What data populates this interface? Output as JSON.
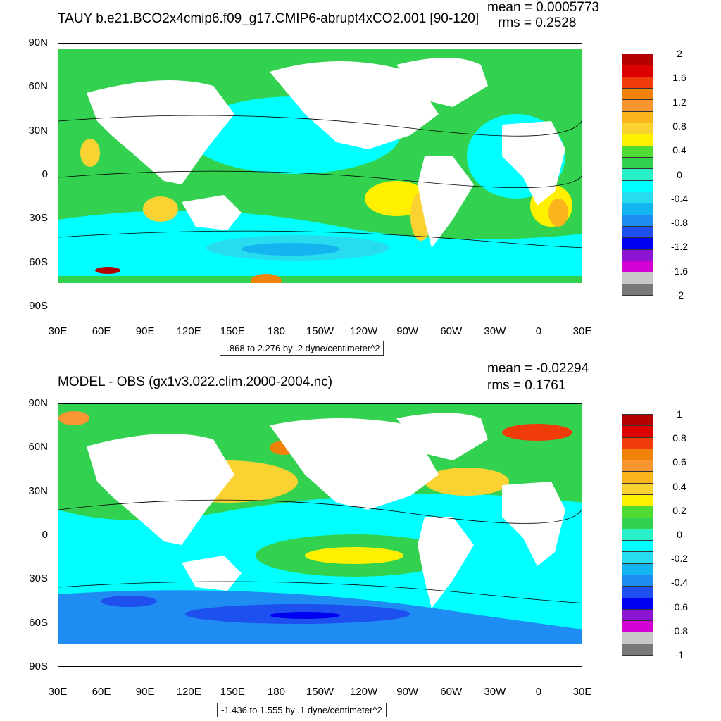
{
  "panels": [
    {
      "title": "TAUY b.e21.BCO2x4cmip6.f09_g17.CMIP6-abrupt4xCO2.001 [90-120]",
      "mean_text": "mean = 0.0005773",
      "rms_text": "rms = 0.2528",
      "range_text": "-.868 to 2.276 by .2 dyne/centimeter^2",
      "colorbar": {
        "labels": [
          "2",
          "1.6",
          "1.2",
          "0.8",
          "0.4",
          "0",
          "-0.4",
          "-0.8",
          "-1.2",
          "-1.6",
          "-2"
        ],
        "colors": [
          "#b40000",
          "#dc0000",
          "#f03c0a",
          "#f0820a",
          "#fa9632",
          "#fab41e",
          "#fad232",
          "#fff000",
          "#50dc32",
          "#32d250",
          "#28f0c8",
          "#00ffff",
          "#28dcf0",
          "#14b4f0",
          "#1e8cf0",
          "#1e50f0",
          "#0000f0",
          "#8c14d2",
          "#d200d2",
          "#c8c8c8",
          "#787878"
        ]
      }
    },
    {
      "title": "MODEL - OBS (gx1v3.022.clim.2000-2004.nc)",
      "mean_text": "mean = -0.02294",
      "rms_text": "rms = 0.1761",
      "range_text": "-1.436 to 1.555 by .1 dyne/centimeter^2",
      "colorbar": {
        "labels": [
          "1",
          "0.8",
          "0.6",
          "0.4",
          "0.2",
          "0",
          "-0.2",
          "-0.4",
          "-0.6",
          "-0.8",
          "-1"
        ],
        "colors": [
          "#b40000",
          "#dc0000",
          "#f03c0a",
          "#f0820a",
          "#fa9632",
          "#fab41e",
          "#fad232",
          "#fff000",
          "#50dc32",
          "#32d250",
          "#28f0c8",
          "#00ffff",
          "#28dcf0",
          "#14b4f0",
          "#1e8cf0",
          "#1e50f0",
          "#0000f0",
          "#8c14d2",
          "#d200d2",
          "#c8c8c8",
          "#787878"
        ]
      }
    }
  ],
  "axes": {
    "lat_labels": [
      "90N",
      "60N",
      "30N",
      "0",
      "30S",
      "60S",
      "90S"
    ],
    "lon_labels": [
      "30E",
      "60E",
      "90E",
      "120E",
      "150E",
      "180",
      "150W",
      "120W",
      "90W",
      "60W",
      "30W",
      "0",
      "30E"
    ]
  },
  "colors": {
    "ocean_base": "#40e0a0",
    "land": "#ffffff"
  }
}
